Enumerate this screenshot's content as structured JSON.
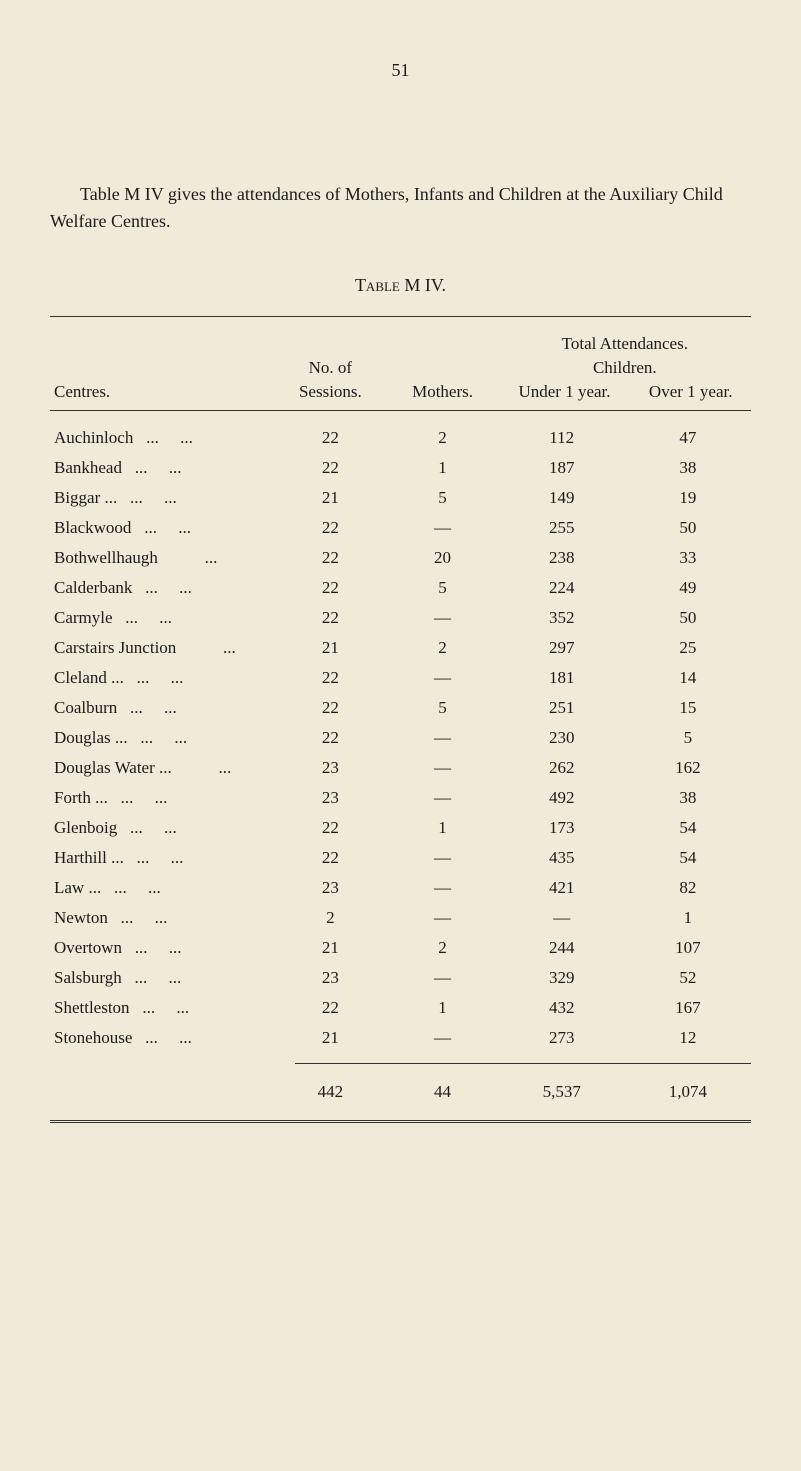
{
  "page_number": "51",
  "intro": "Table M IV gives the attendances of Mothers, Infants and Children at the Auxiliary Child Welfare Centres.",
  "table_title": "Table M IV.",
  "headers": {
    "total_attendances": "Total Attendances.",
    "no_of": "No. of",
    "children": "Children.",
    "centres": "Centres.",
    "sessions": "Sessions.",
    "mothers": "Mothers.",
    "under": "Under 1 year.",
    "over": "Over 1 year."
  },
  "rows": [
    {
      "centre": "Auchinloch",
      "dots": "...     ...",
      "sessions": "22",
      "mothers": "2",
      "under": "112",
      "over": "47"
    },
    {
      "centre": "Bankhead",
      "dots": "...     ...",
      "sessions": "22",
      "mothers": "1",
      "under": "187",
      "over": "38"
    },
    {
      "centre": "Biggar ...",
      "dots": "...     ...",
      "sessions": "21",
      "mothers": "5",
      "under": "149",
      "over": "19"
    },
    {
      "centre": "Blackwood",
      "dots": "...     ...",
      "sessions": "22",
      "mothers": "—",
      "under": "255",
      "over": "50"
    },
    {
      "centre": "Bothwellhaugh",
      "dots": "        ...",
      "sessions": "22",
      "mothers": "20",
      "under": "238",
      "over": "33"
    },
    {
      "centre": "Calderbank",
      "dots": "...     ...",
      "sessions": "22",
      "mothers": "5",
      "under": "224",
      "over": "49"
    },
    {
      "centre": "Carmyle",
      "dots": "...     ...",
      "sessions": "22",
      "mothers": "—",
      "under": "352",
      "over": "50"
    },
    {
      "centre": "Carstairs Junction",
      "dots": "        ...",
      "sessions": "21",
      "mothers": "2",
      "under": "297",
      "over": "25"
    },
    {
      "centre": "Cleland ...",
      "dots": "...     ...",
      "sessions": "22",
      "mothers": "—",
      "under": "181",
      "over": "14"
    },
    {
      "centre": "Coalburn",
      "dots": "...     ...",
      "sessions": "22",
      "mothers": "5",
      "under": "251",
      "over": "15"
    },
    {
      "centre": "Douglas ...",
      "dots": "...     ...",
      "sessions": "22",
      "mothers": "—",
      "under": "230",
      "over": "5"
    },
    {
      "centre": "Douglas Water ...",
      "dots": "        ...",
      "sessions": "23",
      "mothers": "—",
      "under": "262",
      "over": "162"
    },
    {
      "centre": "Forth    ...",
      "dots": "...     ...",
      "sessions": "23",
      "mothers": "—",
      "under": "492",
      "over": "38"
    },
    {
      "centre": "Glenboig",
      "dots": "...     ...",
      "sessions": "22",
      "mothers": "1",
      "under": "173",
      "over": "54"
    },
    {
      "centre": "Harthill ...",
      "dots": "...     ...",
      "sessions": "22",
      "mothers": "—",
      "under": "435",
      "over": "54"
    },
    {
      "centre": "Law      ...",
      "dots": "...     ...",
      "sessions": "23",
      "mothers": "—",
      "under": "421",
      "over": "82"
    },
    {
      "centre": "Newton",
      "dots": "...     ...",
      "sessions": "2",
      "mothers": "—",
      "under": "—",
      "over": "1"
    },
    {
      "centre": "Overtown",
      "dots": "...     ...",
      "sessions": "21",
      "mothers": "2",
      "under": "244",
      "over": "107"
    },
    {
      "centre": "Salsburgh",
      "dots": "...     ...",
      "sessions": "23",
      "mothers": "—",
      "under": "329",
      "over": "52"
    },
    {
      "centre": "Shettleston",
      "dots": "...     ...",
      "sessions": "22",
      "mothers": "1",
      "under": "432",
      "over": "167"
    },
    {
      "centre": "Stonehouse",
      "dots": "...     ...",
      "sessions": "21",
      "mothers": "—",
      "under": "273",
      "over": "12"
    }
  ],
  "totals": {
    "sessions": "442",
    "mothers": "44",
    "under": "5,537",
    "over": "1,074"
  }
}
